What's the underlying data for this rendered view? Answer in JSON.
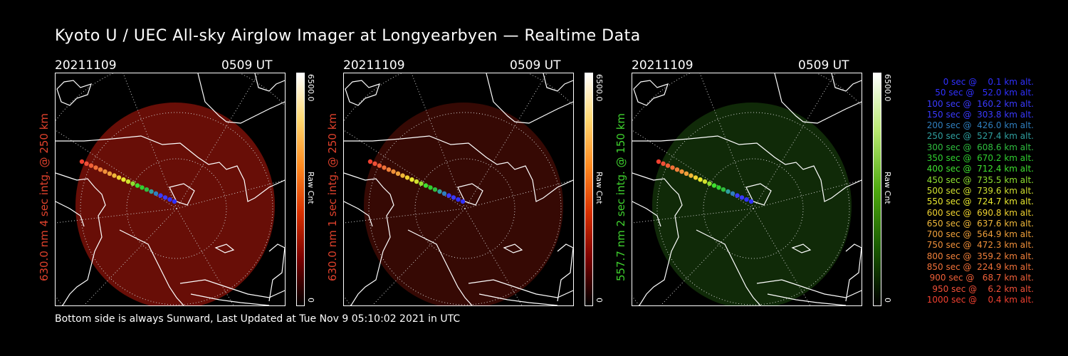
{
  "title": "Kyoto U / UEC All-sky Airglow Imager at Longyearbyen — Realtime Data",
  "footer": "Bottom side is always Sunward, Last Updated at Tue Nov  9 05:10:02 2021 in UTC",
  "panels": [
    {
      "date": "20211109",
      "time": "0509 UT",
      "ylabel": "630.0 nm 4 sec intg. @ 250 km",
      "label_color": "#e0412c",
      "cbar_max": "6500.0",
      "cbar_unit": "Raw Cnt",
      "cbar_min": "0",
      "colormap": "red",
      "glow_level": 0.55
    },
    {
      "date": "20211109",
      "time": "0509 UT",
      "ylabel": "630.0 nm 1 sec intg. @ 250 km",
      "label_color": "#e0412c",
      "cbar_max": "6500.0",
      "cbar_unit": "Raw Cnt",
      "cbar_min": "0",
      "colormap": "red",
      "glow_level": 0.15
    },
    {
      "date": "20211109",
      "time": "0509 UT",
      "ylabel": "557.7 nm 2 sec intg. @ 150 km",
      "label_color": "#3fd12e",
      "cbar_max": "6500.0",
      "cbar_unit": "Raw Cnt",
      "cbar_min": "0",
      "colormap": "green",
      "glow_level": 0.25
    }
  ],
  "trajectory_legend": [
    {
      "text": "   0 sec @    0.1 km alt.",
      "color": "#3030ff"
    },
    {
      "text": "  50 sec @   52.0 km alt.",
      "color": "#3030ff"
    },
    {
      "text": " 100 sec @  160.2 km alt.",
      "color": "#3a3aff"
    },
    {
      "text": " 150 sec @  303.8 km alt.",
      "color": "#3a3aff"
    },
    {
      "text": " 200 sec @  426.0 km alt.",
      "color": "#2f7fbf"
    },
    {
      "text": " 250 sec @  527.4 km alt.",
      "color": "#2f9f9f"
    },
    {
      "text": " 300 sec @  608.6 km alt.",
      "color": "#2fbf3f"
    },
    {
      "text": " 350 sec @  670.2 km alt.",
      "color": "#2fd02f"
    },
    {
      "text": " 400 sec @  712.4 km alt.",
      "color": "#3fe02f"
    },
    {
      "text": " 450 sec @  735.5 km alt.",
      "color": "#8fe02f"
    },
    {
      "text": " 500 sec @  739.6 km alt.",
      "color": "#cfe02f"
    },
    {
      "text": " 550 sec @  724.7 km alt.",
      "color": "#e8e82f"
    },
    {
      "text": " 600 sec @  690.8 km alt.",
      "color": "#f0d22f"
    },
    {
      "text": " 650 sec @  637.6 km alt.",
      "color": "#f0b83a"
    },
    {
      "text": " 700 sec @  564.9 km alt.",
      "color": "#f0a03a"
    },
    {
      "text": " 750 sec @  472.3 km alt.",
      "color": "#f0903a"
    },
    {
      "text": " 800 sec @  359.2 km alt.",
      "color": "#f0803a"
    },
    {
      "text": " 850 sec @  224.9 km alt.",
      "color": "#f07038"
    },
    {
      "text": " 900 sec @   68.7 km alt.",
      "color": "#f06038"
    },
    {
      "text": " 950 sec @    6.2 km alt.",
      "color": "#f05038"
    },
    {
      "text": "1000 sec @    0.4 km alt.",
      "color": "#f04030"
    }
  ]
}
